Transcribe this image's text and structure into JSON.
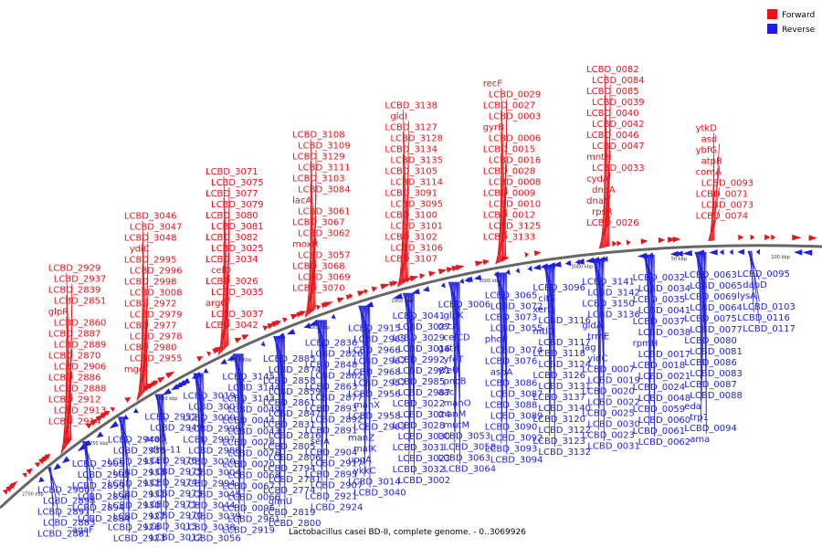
{
  "title": "Lactobacillus casei BD-II, complete genome. - 0..3069926",
  "legend": [
    {
      "label": "Forward",
      "color": "#e8141a"
    },
    {
      "label": "Reverse",
      "color": "#1e1ee0"
    }
  ],
  "colors": {
    "forward": "#e8141a",
    "reverse": "#1e1ee0",
    "backbone": "#666666"
  },
  "scale_labels": [
    "2700 kbp",
    "2750 kbp",
    "2800 kbp",
    "2850 kbp",
    "2900 kbp",
    "2950 kbp",
    "3000 kbp",
    "3050 kbp",
    "50 kbp",
    "100 kbp"
  ],
  "forward_labels": [
    "LCBD_2914",
    "LCBD_2913",
    "LCBD_2912",
    "LCBD_2888",
    "LCBD_2886",
    "LCBD_2906",
    "LCBD_2870",
    "LCBD_2889",
    "LCBD_2887",
    "LCBD_2860",
    "glpR",
    "LCBD_2851",
    "LCBD_2839",
    "LCBD_2937",
    "LCBD_2929",
    "mgg",
    "LCBD_2955",
    "LCBD_2980",
    "LCBD_2978",
    "LCBD_2977",
    "LCBD_2979",
    "LCBD_2972",
    "LCBD_3008",
    "LCBD_2998",
    "LCBD_2996",
    "LCBD_2995",
    "ydiC",
    "LCBD_3048",
    "LCBD_3047",
    "LCBD_3046",
    "LCBD_3042",
    "LCBD_3037",
    "argG",
    "LCBD_3035",
    "LCBD_3026",
    "celD",
    "LCBD_3034",
    "LCBD_3025",
    "LCBD_3082",
    "LCBD_3081",
    "LCBD_3080",
    "LCBD_3079",
    "LCBD_3077",
    "LCBD_3075",
    "LCBD_3071",
    "LCBD_3070",
    "LCBD_3069",
    "LCBD_3068",
    "LCBD_3057",
    "moxR",
    "LCBD_3062",
    "LCBD_3067",
    "LCBD_3061",
    "lacA",
    "LCBD_3084",
    "LCBD_3103",
    "LCBD_3111",
    "LCBD_3129",
    "LCBD_3109",
    "LCBD_3108",
    "LCBD_3107",
    "LCBD_3106",
    "LCBD_3102",
    "LCBD_3101",
    "LCBD_3100",
    "LCBD_3095",
    "LCBD_3091",
    "LCBD_3114",
    "LCBD_3105",
    "LCBD_3135",
    "LCBD_3134",
    "LCBD_3128",
    "LCBD_3127",
    "gldI",
    "LCBD_3138",
    "LCBD_3133",
    "LCBD_3125",
    "LCBD_0012",
    "LCBD_0010",
    "LCBD_0009",
    "LCBD_0008",
    "LCBD_0028",
    "LCBD_0016",
    "LCBD_0015",
    "LCBD_0006",
    "gyrB",
    "LCBD_0003",
    "LCBD_0027",
    "LCBD_0029",
    "recF",
    "LCBD_0026",
    "rpsR",
    "dnaN",
    "dnaA",
    "cydA",
    "LCBD_0033",
    "mntH",
    "LCBD_0047",
    "LCBD_0046",
    "LCBD_0042",
    "LCBD_0040",
    "LCBD_0039",
    "LCBD_0085",
    "LCBD_0084",
    "LCBD_0082",
    "LCBD_0074",
    "LCBD_0073",
    "LCBD_0071",
    "LCBD_0093",
    "comA",
    "atpB",
    "ybfG",
    "asd",
    "ytkD"
  ],
  "reverse_labels": [
    "LCBD_2900",
    "LCBD_2898",
    "LCBD_2897",
    "LCBD_2883",
    "LCBD_2881",
    "LCBD_2878",
    "LCBD_2875",
    "LCBD_2868",
    "LCBD_2865",
    "LCBD_2864",
    "gmuD",
    "LCBD_2849",
    "tagK",
    "LCBD_2918",
    "LCBD_2910",
    "LCBD_2909",
    "LCBD_2905",
    "LCBD_2902",
    "LCBD_2899",
    "LCBD_2896",
    "LCBD_2894",
    "LCBD_2884",
    "agaF",
    "tagT",
    "malX",
    "LCBD_2908",
    "LCBD_2948",
    "LCBD_2946",
    "LCBD_2945",
    "LCBD_2943",
    "LCBD_2942",
    "LCBD_2941",
    "LCBD_2940",
    "LCBD_2938",
    "LCBD_2934",
    "LCBD_2933",
    "LCBD_2932",
    "LCBD_2931",
    "LCBD_2930",
    "LCBD_2927",
    "LCBD_2926",
    "LCBD_2923",
    "LCBD_2922",
    "ptsG-1",
    "LCBD_2928",
    "LCBD_2960",
    "LCBD_2959",
    "LCBD_2953",
    "LCBD_2952",
    "LCBD_2949",
    "araD",
    "dhs-11",
    "LCBD_2976",
    "LCBD_2975",
    "LCBD_2974",
    "LCBD_2973",
    "LCBD_2971",
    "LCBD_2970",
    "LCBD_3013",
    "LCBD_3012",
    "LCBD_3011",
    "LCBD_3010",
    "LCBD_3009",
    "LCBD_2989",
    "LCBD_3019",
    "LCBD_3007",
    "LCBD_3000",
    "LCBD_2999",
    "LCBD_2997",
    "LCBD_2988",
    "LCBD_3020",
    "LCBD_3004",
    "LCBD_2994",
    "LCBD_3045",
    "LCBD_3044",
    "LCBD_3039",
    "LCBD_3038",
    "LCBD_3056",
    "dpiB",
    "LCBD_3097",
    "LCBD_3145",
    "LCBD_3144",
    "LCBD_3143",
    "LCBD_0049",
    "LCBD_0044",
    "LCBD_0043",
    "LCBD_0078",
    "LCBD_0076",
    "LCBD_0070",
    "LCBD_0068",
    "LCBD_0067",
    "LCBD_0066",
    "LCBD_0096",
    "LCBD_2961",
    "LCBD_2919",
    "LCBD_2903",
    "LCBD_2885",
    "LCBD_2874",
    "LCBD_2858",
    "LCBD_2859",
    "LCBD_2861",
    "LCBD_2847",
    "LCBD_2831",
    "LCBD_2816",
    "LCBD_2805",
    "LCBD_2806",
    "LCBD_2794",
    "LCBD_2781",
    "LCBD_2774",
    "glmU",
    "LCBD_2819",
    "LCBD_2800",
    "LCBD_2836",
    "LCBD_2826",
    "LCBD_2848",
    "LCBD_2862",
    "LCBD_2863",
    "LCBD_2877",
    "LCBD_2893",
    "LCBD_2892",
    "LCBD_2891",
    "selA",
    "LCBD_2904",
    "LCBD_2917",
    "LCBD_2895",
    "LCBD_2907",
    "LCBD_2921",
    "LCBD_2924",
    "LCBD_2915",
    "LCBD_2965",
    "LCBD_2966",
    "LCBD_2967",
    "LCBD_2968",
    "LCBD_2957",
    "LCBD_2956",
    "manX",
    "LCBD_2958",
    "LCBD_2963",
    "manZ",
    "malK",
    "upgA",
    "ykkC",
    "LCBD_3014",
    "LCBD_3040",
    "LCBD_3041",
    "LCBD_3027",
    "LCBD_3029",
    "LCBD_3016",
    "LCBD_2992",
    "LCBD_2981",
    "LCBD_2985",
    "LCBD_2987",
    "LCBD_3022",
    "LCBD_3024",
    "LCBD_3028",
    "LCBD_3030",
    "LCBD_3031",
    "LCBD_3023",
    "LCBD_3032",
    "LCBD_3002",
    "LCBD_3006",
    "glpK",
    "recA",
    "celCD",
    "gatY",
    "yfeT",
    "yfeU",
    "pncB",
    "aac",
    "manO",
    "manM",
    "mutM",
    "LCBD_3053",
    "LCBD_3058",
    "LCBD_3063",
    "LCBD_3064",
    "LCBD_3065",
    "LCBD_3072",
    "LCBD_3073",
    "LCBD_3055",
    "phoP",
    "LCBD_3074",
    "LCBD_3076",
    "aspA",
    "LCBD_3086",
    "LCBD_3087",
    "LCBD_3088",
    "LCBD_3089",
    "LCBD_3090",
    "LCBD_3092",
    "LCBD_3093",
    "LCBD_3094",
    "LCBD_3096",
    "citS",
    "xerC",
    "LCBD_3116",
    "mtlD",
    "LCBD_3117",
    "LCBD_3118",
    "LCBD_3124",
    "LCBD_3126",
    "LCBD_3131",
    "LCBD_3137",
    "LCBD_3140",
    "LCBD_3120",
    "LCBD_3122",
    "LCBD_3123",
    "LCBD_3132",
    "LCBD_3141",
    "LCBD_3142",
    "LCBD_3150",
    "LCBD_3136",
    "gidA",
    "trmE",
    "jag",
    "yidC",
    "LCBD_0007",
    "LCBD_0019",
    "LCBD_0020",
    "LCBD_0022",
    "LCBD_0025",
    "LCBD_0030",
    "LCBD_0023",
    "LCBD_0031",
    "LCBD_0032",
    "LCBD_0034",
    "LCBD_0035",
    "LCBD_0041",
    "LCBD_0037",
    "LCBD_0038",
    "rpmH",
    "LCBD_0017",
    "LCBD_0018",
    "LCBD_0021",
    "LCBD_0024",
    "LCBD_0048",
    "LCBD_0059",
    "LCBD_0060",
    "LCBD_0061",
    "LCBD_0062",
    "LCBD_0063",
    "LCBD_0065",
    "LCBD_0069",
    "LCBD_0064",
    "LCBD_0075",
    "LCBD_0077",
    "LCBD_0080",
    "LCBD_0081",
    "LCBD_0086",
    "LCBD_0083",
    "LCBD_0087",
    "LCBD_0088",
    "eda",
    "trp1",
    "LCBD_0094",
    "ama",
    "LCBD_0095",
    "dapD",
    "lysA",
    "LCBD_0103",
    "LCBD_0116",
    "LCBD_0117"
  ]
}
